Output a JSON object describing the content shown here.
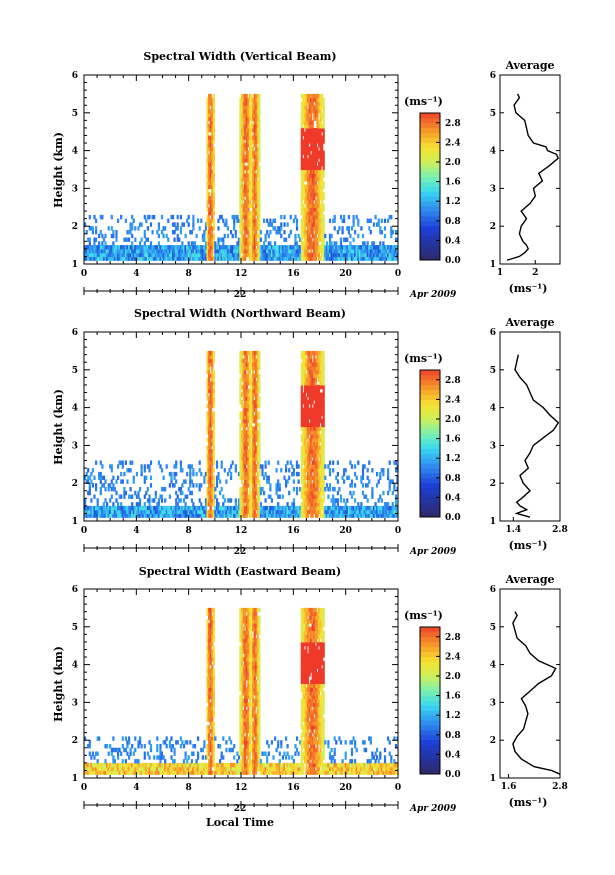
{
  "chart_data": [
    {
      "type": "heatmap",
      "title": "Spectral Width (Vertical Beam)",
      "ylabel": "Height (km)",
      "xlabel": "",
      "x_ticks": [
        "0",
        "4",
        "8",
        "12",
        "16",
        "20",
        "0"
      ],
      "xlim": [
        0,
        24
      ],
      "y_ticks": [
        "1",
        "2",
        "3",
        "4",
        "5",
        "6"
      ],
      "ylim": [
        1,
        6
      ],
      "day_label": "22",
      "month_label": "Apr 2009",
      "colorbar": {
        "unit": "(ms⁻¹)",
        "ticks": [
          "0.0",
          "0.4",
          "0.8",
          "1.2",
          "1.6",
          "2.0",
          "2.4",
          "2.8"
        ],
        "range": [
          0.0,
          3.0
        ]
      },
      "profile": {
        "title": "Average",
        "xlabel": "(ms⁻¹)",
        "x_ticks": [
          "1",
          "2"
        ],
        "xlim": [
          1,
          2.7
        ],
        "ylim": [
          1,
          6
        ],
        "y_ticks": [
          "1",
          "2",
          "3",
          "4",
          "5",
          "6"
        ],
        "heights": [
          1.1,
          1.2,
          1.3,
          1.4,
          1.5,
          1.6,
          1.8,
          2.0,
          2.2,
          2.4,
          2.6,
          2.8,
          3.0,
          3.2,
          3.4,
          3.6,
          3.8,
          3.9,
          4.0,
          4.1,
          4.2,
          4.4,
          4.6,
          4.8,
          5.0,
          5.2,
          5.4,
          5.5
        ],
        "values": [
          1.2,
          1.55,
          1.7,
          1.8,
          1.75,
          1.65,
          1.55,
          1.6,
          1.75,
          1.6,
          1.85,
          2.0,
          1.95,
          2.2,
          2.1,
          2.4,
          2.65,
          2.6,
          2.35,
          2.3,
          1.95,
          1.8,
          1.75,
          1.7,
          1.45,
          1.4,
          1.55,
          1.5
        ]
      }
    },
    {
      "type": "heatmap",
      "title": "Spectral Width (Northward Beam)",
      "ylabel": "Height (km)",
      "xlabel": "",
      "x_ticks": [
        "0",
        "4",
        "8",
        "12",
        "16",
        "20",
        "0"
      ],
      "xlim": [
        0,
        24
      ],
      "y_ticks": [
        "1",
        "2",
        "3",
        "4",
        "5",
        "6"
      ],
      "ylim": [
        1,
        6
      ],
      "day_label": "22",
      "month_label": "Apr 2009",
      "colorbar": {
        "unit": "(ms⁻¹)",
        "ticks": [
          "0.0",
          "0.4",
          "0.8",
          "1.2",
          "1.6",
          "2.0",
          "2.4",
          "2.8"
        ],
        "range": [
          0.0,
          3.0
        ]
      },
      "profile": {
        "title": "Average",
        "xlabel": "(ms⁻¹)",
        "x_ticks": [
          "1.4",
          "2.8"
        ],
        "xlim": [
          1.0,
          2.8
        ],
        "ylim": [
          1,
          6
        ],
        "y_ticks": [
          "1",
          "2",
          "3",
          "4",
          "5",
          "6"
        ],
        "heights": [
          1.1,
          1.2,
          1.3,
          1.4,
          1.5,
          1.6,
          1.8,
          2.0,
          2.2,
          2.4,
          2.6,
          2.8,
          3.0,
          3.2,
          3.4,
          3.6,
          3.8,
          4.0,
          4.2,
          4.4,
          4.6,
          4.8,
          5.0,
          5.2,
          5.4
        ],
        "values": [
          1.9,
          1.5,
          1.8,
          1.6,
          1.5,
          1.65,
          1.9,
          1.7,
          1.6,
          1.85,
          1.75,
          1.9,
          2.0,
          2.3,
          2.6,
          2.75,
          2.5,
          2.3,
          2.0,
          1.9,
          1.8,
          1.6,
          1.45,
          1.5,
          1.55
        ]
      }
    },
    {
      "type": "heatmap",
      "title": "Spectral Width (Eastward Beam)",
      "ylabel": "Height (km)",
      "xlabel": "Local Time",
      "x_ticks": [
        "0",
        "4",
        "8",
        "12",
        "16",
        "20",
        "0"
      ],
      "xlim": [
        0,
        24
      ],
      "y_ticks": [
        "1",
        "2",
        "3",
        "4",
        "5",
        "6"
      ],
      "ylim": [
        1,
        6
      ],
      "day_label": "22",
      "month_label": "Apr 2009",
      "colorbar": {
        "unit": "(ms⁻¹)",
        "ticks": [
          "0.0",
          "0.4",
          "0.8",
          "1.2",
          "1.6",
          "2.0",
          "2.4",
          "2.8"
        ],
        "range": [
          0.0,
          3.0
        ]
      },
      "profile": {
        "title": "Average",
        "xlabel": "(ms⁻¹)",
        "x_ticks": [
          "1.6",
          "2.8"
        ],
        "xlim": [
          1.4,
          2.8
        ],
        "ylim": [
          1,
          6
        ],
        "y_ticks": [
          "1",
          "2",
          "3",
          "4",
          "5",
          "6"
        ],
        "heights": [
          1.1,
          1.2,
          1.3,
          1.5,
          1.7,
          1.9,
          2.1,
          2.3,
          2.5,
          2.7,
          2.9,
          3.1,
          3.3,
          3.5,
          3.7,
          3.9,
          4.1,
          4.3,
          4.5,
          4.7,
          4.9,
          5.1,
          5.3,
          5.4
        ],
        "values": [
          2.8,
          2.6,
          2.2,
          1.9,
          1.75,
          1.7,
          1.8,
          1.95,
          2.0,
          2.05,
          2.0,
          1.9,
          2.1,
          2.3,
          2.6,
          2.7,
          2.3,
          2.1,
          2.0,
          1.8,
          1.75,
          1.7,
          1.8,
          1.75
        ]
      }
    }
  ]
}
